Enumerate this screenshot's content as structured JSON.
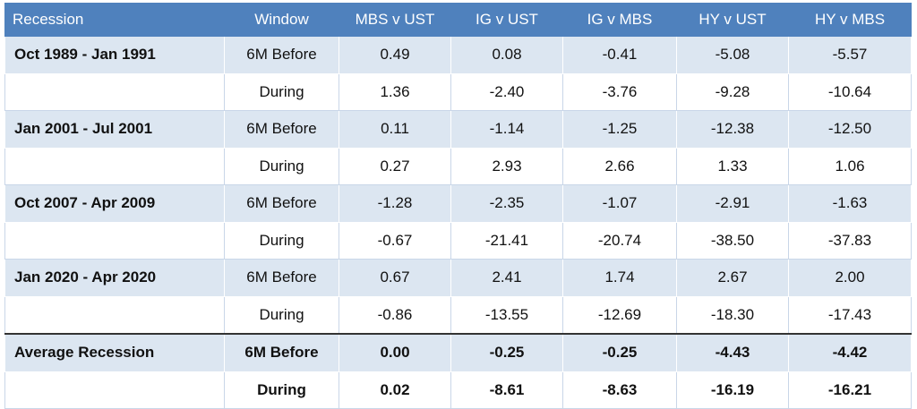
{
  "table": {
    "header": [
      "Recession",
      "Window",
      "MBS v UST",
      "IG v UST",
      "IG v MBS",
      "HY v UST",
      "HY v MBS"
    ],
    "rows": [
      [
        "Oct 1989 - Jan 1991",
        "6M Before",
        "0.49",
        "0.08",
        "-0.41",
        "-5.08",
        "-5.57"
      ],
      [
        null,
        "During",
        "1.36",
        "-2.40",
        "-3.76",
        "-9.28",
        "-10.64"
      ],
      [
        "Jan 2001 - Jul 2001",
        "6M Before",
        "0.11",
        "-1.14",
        "-1.25",
        "-12.38",
        "-12.50"
      ],
      [
        null,
        "During",
        "0.27",
        "2.93",
        "2.66",
        "1.33",
        "1.06"
      ],
      [
        "Oct 2007 - Apr 2009",
        "6M Before",
        "-1.28",
        "-2.35",
        "-1.07",
        "-2.91",
        "-1.63"
      ],
      [
        null,
        "During",
        "-0.67",
        "-21.41",
        "-20.74",
        "-38.50",
        "-37.83"
      ],
      [
        "Jan 2020 - Apr 2020",
        "6M Before",
        "0.67",
        "2.41",
        "1.74",
        "2.67",
        "2.00"
      ],
      [
        null,
        "During",
        "-0.86",
        "-13.55",
        "-12.69",
        "-18.30",
        "-17.43"
      ],
      [
        "Average Recession",
        "6M Before",
        "0.00",
        "-0.25",
        "-0.25",
        "-4.43",
        "-4.42"
      ],
      [
        null,
        "During",
        "0.02",
        "-8.61",
        "-8.63",
        "-16.19",
        "-16.21"
      ]
    ]
  }
}
